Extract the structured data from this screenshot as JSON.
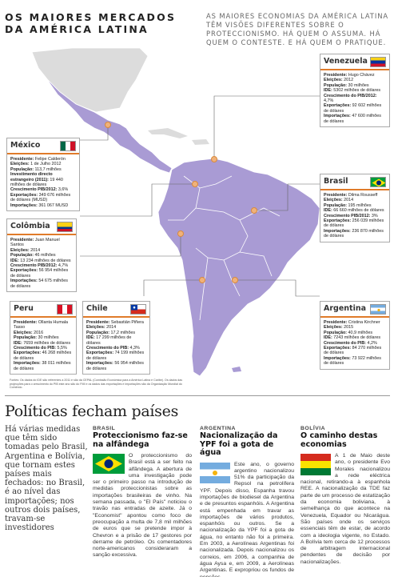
{
  "header": {
    "title": "OS MAIORES MERCADOS DA AMÉRICA LATINA",
    "lede": "AS MAIORES ECONOMIAS DA AMÉRICA LATINA TÊM VISÕES DIFERENTES SOBRE O PROTECCIONISMO. HÁ QUEM O ASSUMA. HÁ QUEM O CONTESTE. E HÁ QUEM O PRATIQUE."
  },
  "colors": {
    "accent": "#e07b2a",
    "land": "#a99bd4",
    "land_dark": "#8f80c4",
    "other_land": "#d9d9d9"
  },
  "countries": {
    "venezuela": {
      "name": "Venezuela",
      "flag": "venezuela-flag-icon",
      "lines": [
        [
          "Presidente:",
          " Hugo Chávez"
        ],
        [
          "Eleições:",
          " 2012"
        ],
        [
          "População:",
          " 30 milhões"
        ],
        [
          "IDE:",
          " 5302 milhões de dólares"
        ],
        [
          "Crescimento do PIB/2012:",
          " 4,7%"
        ],
        [
          "Exportações:",
          " 92 602 milhões de dólares"
        ],
        [
          "Importações:",
          " 47 600 milhões de dólares"
        ]
      ]
    },
    "mexico": {
      "name": "México",
      "flag": "mexico-flag-icon",
      "lines": [
        [
          "Presidente:",
          " Felipe Calderón"
        ],
        [
          "Eleições:",
          " 1 de Julho 2012"
        ],
        [
          "População:",
          " 113,7 milhões"
        ],
        [
          "Investimento directo estrangeiro (2011):",
          " 19 440 milhões de dólares"
        ],
        [
          "Crescimento PIB/2012:",
          " 3,6%"
        ],
        [
          "Exportações:",
          " 349 676 milhões de dólares (MUSD)"
        ],
        [
          "Importações:",
          " 361 067 MUSD"
        ]
      ]
    },
    "colombia": {
      "name": "Colômbia",
      "flag": "colombia-flag-icon",
      "lines": [
        [
          "Presidente:",
          " Juan Manuel Santos"
        ],
        [
          "Eleições:",
          " 2014"
        ],
        [
          "População:",
          " 46 milhões"
        ],
        [
          "IDE:",
          " 13 234 milhões de dólares"
        ],
        [
          "Crescimento PIB/2012:",
          " 4,7%"
        ],
        [
          "Exportações:",
          " 56 954 milhões de dólares"
        ],
        [
          "Importações:",
          " 54 675 milhões de dólares"
        ]
      ]
    },
    "brasil": {
      "name": "Brasil",
      "flag": "brazil-flag-icon",
      "lines": [
        [
          "Presidente:",
          " Dilma Rousseff"
        ],
        [
          "Eleições:",
          " 2014"
        ],
        [
          "População:",
          " 195 milhões"
        ],
        [
          "IDE:",
          " 66 660 milhões de dólares"
        ],
        [
          "Crescimento PIB/2012:",
          " 3%"
        ],
        [
          "Exportações:",
          " 256 039 milhões de dólares"
        ],
        [
          "Importações:",
          " 236 870 milhões de dólares"
        ]
      ]
    },
    "peru": {
      "name": "Peru",
      "flag": "peru-flag-icon",
      "lines": [
        [
          "Presidente:",
          " Ollanta Humala Tasso"
        ],
        [
          "Eleições:",
          " 2016"
        ],
        [
          "População:",
          " 30 milhões"
        ],
        [
          "IDE:",
          " 7659 milhões de dólares"
        ],
        [
          "Crescimento do PIB:",
          " 5,5%"
        ],
        [
          "Exportações:",
          " 46 268 milhões de dólares"
        ],
        [
          "Importações:",
          " 38 011 milhões de dólares"
        ]
      ]
    },
    "chile": {
      "name": "Chile",
      "flag": "chile-flag-icon",
      "lines": [
        [
          "Presidente:",
          " Sebastián Piñera"
        ],
        [
          "Eleições:",
          " 2014"
        ],
        [
          "População:",
          " 17,2 milhões"
        ],
        [
          "IDE:",
          " 17 299 milhões de dólares"
        ],
        [
          "Crescimento do PIB:",
          " 4,3%"
        ],
        [
          "Exportações:",
          " 74 199 milhões de dólares"
        ],
        [
          "Importações:",
          " 56 954 milhões de dólares"
        ]
      ]
    },
    "argentina": {
      "name": "Argentina",
      "flag": "argentina-flag-icon",
      "lines": [
        [
          "Presidente:",
          " Cristina Kirchner"
        ],
        [
          "Eleições:",
          " 2015"
        ],
        [
          "População:",
          " 40,9 milhões"
        ],
        [
          "IDE:",
          " 7243 milhões de dólares"
        ],
        [
          "Crescimento do PIB:",
          " 4,2%"
        ],
        [
          "Exportações:",
          " 84 270 milhões de dólares"
        ],
        [
          "Importações:",
          " 73 922 milhões de dólares"
        ]
      ]
    }
  },
  "fonte": "Fontes: Os dados do IDE são referentes a 2011 e são da CEPAL (Comissão Económica para a América Latina e Caribe). Os dados das projecções para o crescimento do PIB este ano são do FMI e os dados das exportações e importações são da Organização Mundial do Comércio.",
  "article": {
    "headline": "Políticas fecham países",
    "intro": "Há várias medidas que têm sido tomadas pelo Brasil, Argentina e Bolívia, que tornam estes países mais fechados: no Brasil, é ao nível das importações; nos outros dois países, travam-se investidores",
    "columns": [
      {
        "kicker": "BRASIL",
        "headline": "Proteccionismo faz-se na alfândega",
        "flag": "brazil-flag-icon",
        "text": "O proteccionismo do Brasil está a ser feito na alfândega. A abertura de uma investigação pode ser o primeiro passo na introdução de medidas proteccionistas sobre as importações brasileiras de vinho. Na semana passada, o \"El País\" noticiou o travão nas entradas de azeite. Já o \"Economist\" apontou como foco de preocupação a multa de 7,8 mil milhões de euros que se pretende impor à Chevron e a prisão de 17 gestores por derrame de petróleo. Os comentadores norte-americanos consideraram a sanção excessiva."
      },
      {
        "kicker": "ARGENTINA",
        "headline": "Nacionalização da YPF foi a gota de água",
        "flag": "argentina-flag-icon",
        "text": "Este ano, o governo argentino nacionalizou 51% da participação da Repsol na petrolífera YPF. Depois disso, Espanha travou importações de biodiesel da Argentina e de presuntos espanhóis. A Argentina está empenhada em travar as importações de vários produtos, espanhóis ou outros. Se a nacionalização da YPF foi a gota de água, no entanto não foi a primeira. Em 2003, a Aerolíneas Argentinas foi nacionalizada. Depois nacionalizou os correios, em 2006, a companhia de água Aysa e, em 2009, a Aerolíneas Argentinas. E expropriou os fundos de pensões."
      },
      {
        "kicker": "BOLÍVIA",
        "headline": "O caminho destas economias",
        "flag": "bolivia-flag-icon",
        "text": "A 1 de Maio deste ano, o presidente Evo Morales nacionalizou a rede eléctrica nacional, retirando-a à espanhola REE. A nacionalização da TDE faz parte de um processo de estatização da economia boliviana, à semelhança do que acontece na Venezuela, Equador ou Nicarágua. São países onde os serviços essenciais têm de estar, de acordo com a ideologia vigente, no Estado. A Bolívia tem cerca de 12 processos de arbitragem internacional pendentes de decisão por nacionalizações."
      }
    ]
  }
}
